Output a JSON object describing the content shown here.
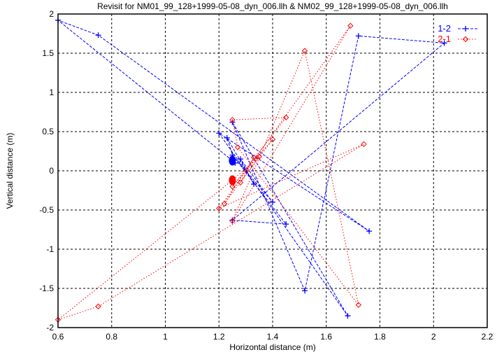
{
  "chart_data": {
    "type": "scatter",
    "title": "Revisit for NM01_99_128+1999-05-08_dyn_006.llh & NM02_99_128+1999-05-08_dyn_006.llh",
    "xlabel": "Horizontal distance (m)",
    "ylabel": "Vertical distance (m)",
    "xlim": [
      0.6,
      2.2
    ],
    "ylim": [
      -2,
      2
    ],
    "xticks": [
      "0.6",
      "0.8",
      "1",
      "1.2",
      "1.4",
      "1.6",
      "1.8",
      "2",
      "2.2"
    ],
    "yticks": [
      "2",
      "1.5",
      "1",
      "0.5",
      "0",
      "-0.5",
      "-1",
      "-1.5",
      "-2"
    ],
    "grid": true,
    "legend": "top-right",
    "series": [
      {
        "name": "1-2",
        "color": "#0000ff",
        "marker": "plus",
        "line": "dashed",
        "points": [
          [
            1.25,
            0.13
          ],
          [
            0.6,
            1.92
          ],
          [
            0.75,
            1.73
          ],
          [
            1.76,
            -0.77
          ],
          [
            1.2,
            0.48
          ],
          [
            1.68,
            -1.85
          ],
          [
            1.25,
            0.62
          ],
          [
            1.52,
            -1.53
          ],
          [
            1.72,
            1.72
          ],
          [
            2.04,
            1.63
          ],
          [
            1.25,
            -0.63
          ],
          [
            1.45,
            -0.68
          ],
          [
            1.25,
            0.2
          ],
          [
            1.4,
            -0.4
          ],
          [
            1.28,
            0.15
          ],
          [
            1.33,
            -0.17
          ],
          [
            1.23,
            0.42
          ],
          [
            1.26,
            0.1
          ],
          [
            1.25,
            0.13
          ]
        ]
      },
      {
        "name": "2-1",
        "color": "#ff0000",
        "marker": "diamond",
        "line": "dotted",
        "points": [
          [
            1.25,
            -0.12
          ],
          [
            0.6,
            -1.9
          ],
          [
            0.75,
            -1.73
          ],
          [
            1.74,
            0.34
          ],
          [
            1.2,
            -0.48
          ],
          [
            1.69,
            1.85
          ],
          [
            1.25,
            -0.64
          ],
          [
            1.52,
            1.53
          ],
          [
            1.72,
            -1.71
          ],
          [
            1.27,
            0.3
          ],
          [
            1.25,
            0.65
          ],
          [
            1.45,
            0.68
          ],
          [
            1.25,
            -0.2
          ],
          [
            1.4,
            0.4
          ],
          [
            1.28,
            -0.15
          ],
          [
            1.33,
            0.17
          ],
          [
            1.22,
            -0.42
          ],
          [
            1.35,
            0.18
          ],
          [
            1.25,
            -0.12
          ]
        ]
      }
    ]
  }
}
